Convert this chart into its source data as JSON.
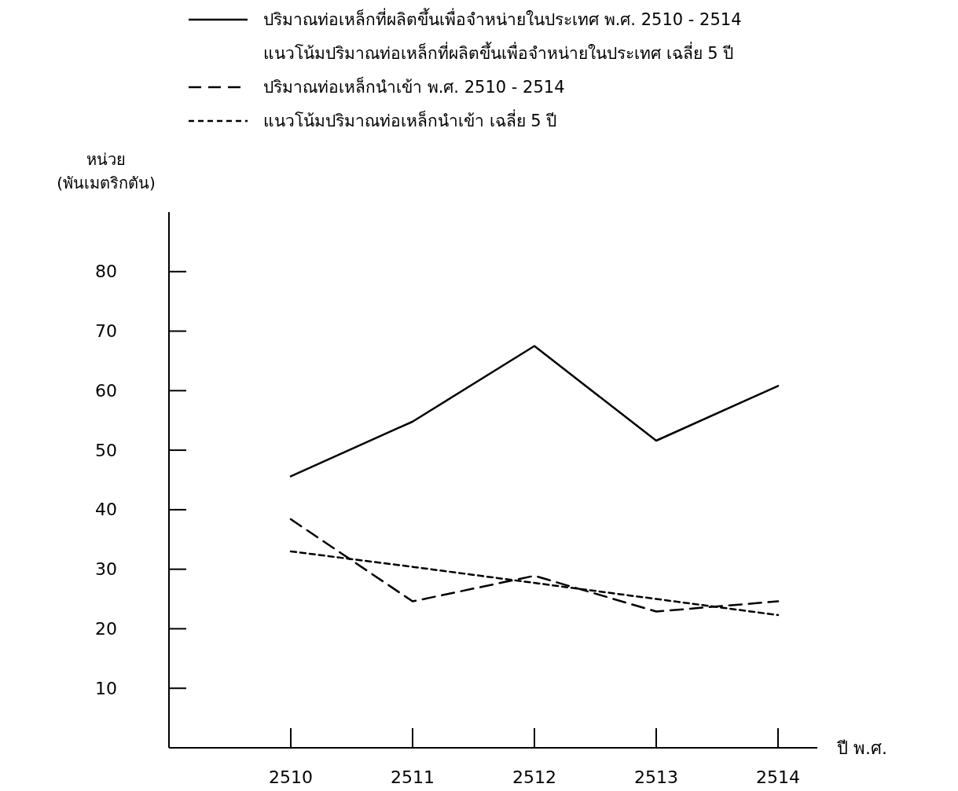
{
  "chart_data": {
    "type": "line",
    "xlabel": "ปี พ.ศ.",
    "ylabel": "หน่วย\n(พันเมตริกตัน)",
    "categories": [
      "2510",
      "2511",
      "2512",
      "2513",
      "2514"
    ],
    "series": [
      {
        "name": "ปริมาณท่อเหล็กที่ผลิตขึ้นเพื่อจำหน่ายในประเทศ พ.ศ. 2510 - 2514",
        "color": "#000000",
        "line_style": "solid",
        "values": [
          45.6,
          54.8,
          67.5,
          51.6,
          60.8
        ]
      },
      {
        "name": "แนวโน้มปริมาณท่อเหล็กที่ผลิตขึ้นเพื่อจำหน่ายในประเทศ เฉลี่ย 5 ปี",
        "color": "#000000",
        "line_style": "none",
        "values": [
          null,
          null,
          null,
          null,
          null
        ]
      },
      {
        "name": "ปริมาณท่อเหล็กนำเข้า พ.ศ. 2510 - 2514",
        "color": "#000000",
        "line_style": "dashed",
        "values": [
          38.4,
          24.6,
          28.9,
          22.9,
          24.6
        ]
      },
      {
        "name": "แนวโน้มปริมาณท่อเหล็กนำเข้า เฉลี่ย 5 ปี",
        "color": "#000000",
        "line_style": "dotted",
        "values": [
          33.0,
          30.4,
          27.7,
          25.0,
          22.3
        ]
      }
    ],
    "ylim": [
      0,
      90
    ],
    "yticks": [
      10,
      20,
      30,
      40,
      50,
      60,
      70,
      80
    ],
    "grid": false,
    "legend": "top",
    "marker": "none"
  }
}
